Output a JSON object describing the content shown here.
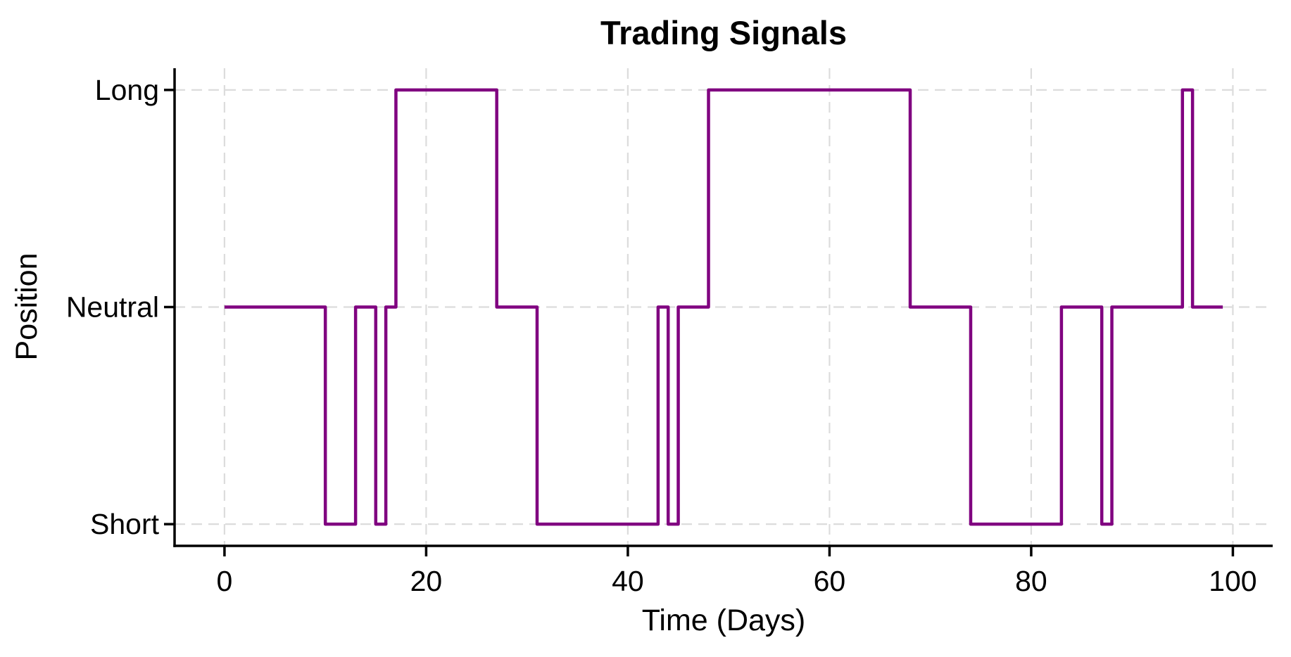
{
  "page": {
    "background_color": "#ffffff"
  },
  "chart_data": {
    "type": "step",
    "step_mode": "post",
    "title": "Trading Signals",
    "xlabel": "Time (Days)",
    "ylabel": "Position",
    "x_ticks": [
      0,
      20,
      40,
      60,
      80,
      100
    ],
    "y_ticks": [
      {
        "value": 1,
        "label": "Long"
      },
      {
        "value": 0,
        "label": "Neutral"
      },
      {
        "value": -1,
        "label": "Short"
      }
    ],
    "xlim": [
      -4.95,
      103.95
    ],
    "ylim": [
      -1.1,
      1.1
    ],
    "grid": {
      "visible": true,
      "style": "dashed",
      "color": "#dcdcdc"
    },
    "line": {
      "color": "#800080",
      "width": 4.5
    },
    "position_levels": {
      "Long": 1,
      "Neutral": 0,
      "Short": -1
    },
    "segments": [
      {
        "start_day": 0,
        "end_day": 9,
        "position": "Neutral",
        "value": 0
      },
      {
        "start_day": 10,
        "end_day": 12,
        "position": "Short",
        "value": -1
      },
      {
        "start_day": 13,
        "end_day": 14,
        "position": "Neutral",
        "value": 0
      },
      {
        "start_day": 15,
        "end_day": 15,
        "position": "Short",
        "value": -1
      },
      {
        "start_day": 16,
        "end_day": 16,
        "position": "Neutral",
        "value": 0
      },
      {
        "start_day": 17,
        "end_day": 26,
        "position": "Long",
        "value": 1
      },
      {
        "start_day": 27,
        "end_day": 30,
        "position": "Neutral",
        "value": 0
      },
      {
        "start_day": 31,
        "end_day": 42,
        "position": "Short",
        "value": -1
      },
      {
        "start_day": 43,
        "end_day": 43,
        "position": "Neutral",
        "value": 0
      },
      {
        "start_day": 44,
        "end_day": 44,
        "position": "Short",
        "value": -1
      },
      {
        "start_day": 45,
        "end_day": 47,
        "position": "Neutral",
        "value": 0
      },
      {
        "start_day": 48,
        "end_day": 67,
        "position": "Long",
        "value": 1
      },
      {
        "start_day": 68,
        "end_day": 73,
        "position": "Neutral",
        "value": 0
      },
      {
        "start_day": 74,
        "end_day": 82,
        "position": "Short",
        "value": -1
      },
      {
        "start_day": 83,
        "end_day": 86,
        "position": "Neutral",
        "value": 0
      },
      {
        "start_day": 87,
        "end_day": 87,
        "position": "Short",
        "value": -1
      },
      {
        "start_day": 88,
        "end_day": 94,
        "position": "Neutral",
        "value": 0
      },
      {
        "start_day": 95,
        "end_day": 95,
        "position": "Long",
        "value": 1
      },
      {
        "start_day": 96,
        "end_day": 99,
        "position": "Neutral",
        "value": 0
      }
    ]
  }
}
